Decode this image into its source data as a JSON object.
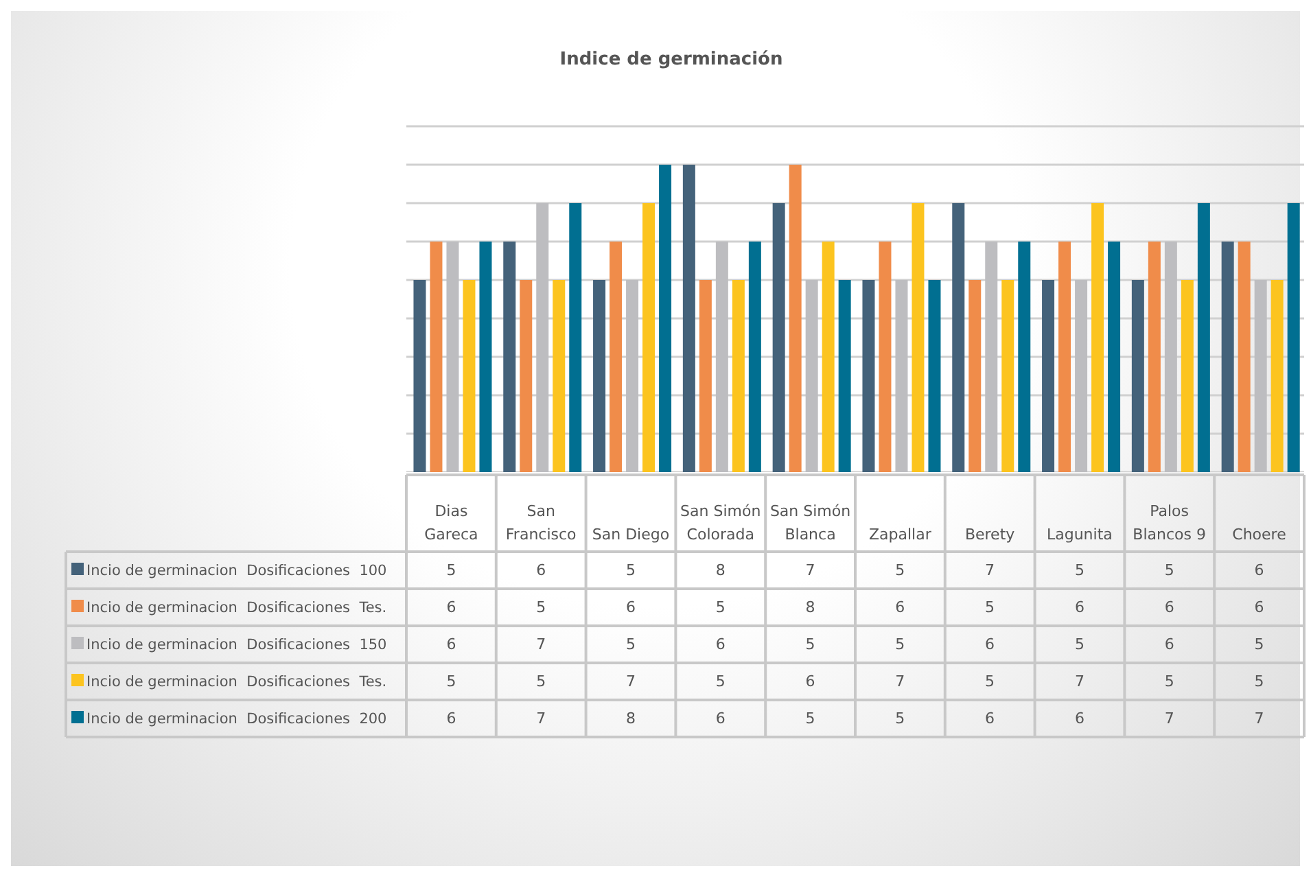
{
  "chart_data": {
    "type": "bar",
    "title": "Indice de germinación",
    "categories": [
      "Dias\nGareca",
      "San\nFrancisco",
      "San Diego",
      "San Simón\nColorada",
      "San Simón\nBlanca",
      "Zapallar",
      "Berety",
      "Lagunita",
      "Palos\nBlancos 9",
      "Choere"
    ],
    "series": [
      {
        "name": "Incio de germinacion  Dosificaciones  100",
        "color": "#44627a",
        "values": [
          5,
          6,
          5,
          8,
          7,
          5,
          7,
          5,
          5,
          6
        ]
      },
      {
        "name": "Incio de germinacion  Dosificaciones  Tes.",
        "color": "#f08c4a",
        "values": [
          6,
          5,
          6,
          5,
          8,
          6,
          5,
          6,
          6,
          6
        ]
      },
      {
        "name": "Incio de germinacion  Dosificaciones  150",
        "color": "#bdbdc0",
        "values": [
          6,
          7,
          5,
          6,
          5,
          5,
          6,
          5,
          6,
          5
        ]
      },
      {
        "name": "Incio de germinacion  Dosificaciones  Tes.",
        "color": "#fcc41f",
        "values": [
          5,
          5,
          7,
          5,
          6,
          7,
          5,
          7,
          5,
          5
        ]
      },
      {
        "name": "Incio de germinacion  Dosificaciones  200",
        "color": "#016f91",
        "values": [
          6,
          7,
          8,
          6,
          5,
          5,
          6,
          6,
          7,
          7
        ]
      }
    ],
    "ylim": [
      0,
      9
    ],
    "yticks": [
      {
        "value": 0,
        "label": null
      },
      {
        "value": 1,
        "label": null
      },
      {
        "value": 2,
        "label": null
      },
      {
        "value": 3,
        "label": null
      },
      {
        "value": 4,
        "label": null
      },
      {
        "value": 5,
        "label": null
      },
      {
        "value": 6,
        "label": null
      },
      {
        "value": 7,
        "label": null
      },
      {
        "value": 8,
        "label": null
      },
      {
        "value": 9,
        "label": null
      }
    ],
    "tick_labels": "x",
    "grid": "y",
    "legend": "bottom",
    "data_labels": true
  }
}
